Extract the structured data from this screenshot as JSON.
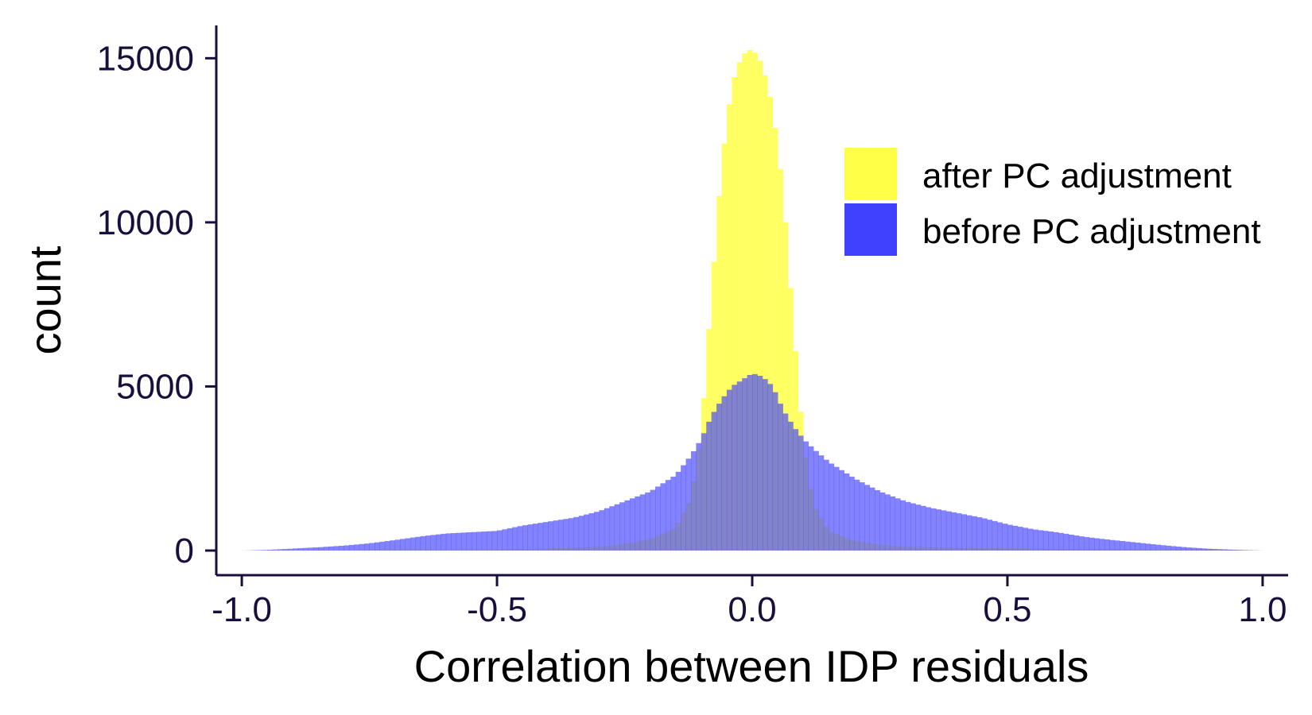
{
  "chart_data": {
    "type": "histogram",
    "xlabel": "Correlation between IDP residuals",
    "ylabel": "count",
    "xlim": [
      -1.05,
      1.05
    ],
    "ylim": [
      -750,
      16000
    ],
    "xticks": [
      -1.0,
      -0.5,
      0.0,
      0.5,
      1.0
    ],
    "xtick_labels": [
      "-1.0",
      "-0.5",
      "0.0",
      "0.5",
      "1.0"
    ],
    "yticks": [
      0,
      5000,
      10000,
      15000
    ],
    "ytick_labels": [
      "0",
      "5000",
      "10000",
      "15000"
    ],
    "grid": false,
    "legend_position": "top-right",
    "series": [
      {
        "name": "after PC adjustment",
        "color": "#ffff33",
        "opacity": 0.75,
        "x": [
          -1.0,
          -0.9,
          -0.8,
          -0.7,
          -0.6,
          -0.5,
          -0.4,
          -0.3,
          -0.25,
          -0.2,
          -0.15,
          -0.12,
          -0.1,
          -0.08,
          -0.06,
          -0.04,
          -0.02,
          0.0,
          0.02,
          0.04,
          0.06,
          0.08,
          0.1,
          0.12,
          0.15,
          0.2,
          0.25,
          0.3,
          0.4,
          0.5,
          0.6,
          0.7,
          0.8,
          0.9,
          0.95,
          1.0
        ],
        "y": [
          0,
          5,
          10,
          15,
          20,
          30,
          60,
          120,
          200,
          350,
          700,
          1600,
          3600,
          7800,
          11800,
          14200,
          15100,
          15300,
          14800,
          13500,
          11000,
          7000,
          3300,
          1400,
          600,
          300,
          180,
          120,
          90,
          70,
          50,
          40,
          30,
          60,
          30,
          0
        ]
      },
      {
        "name": "before PC adjustment",
        "color": "#4040ff",
        "opacity": 0.65,
        "x": [
          -1.0,
          -0.95,
          -0.9,
          -0.85,
          -0.8,
          -0.75,
          -0.7,
          -0.65,
          -0.6,
          -0.55,
          -0.5,
          -0.45,
          -0.4,
          -0.35,
          -0.3,
          -0.25,
          -0.2,
          -0.15,
          -0.12,
          -0.1,
          -0.08,
          -0.06,
          -0.04,
          -0.02,
          0.0,
          0.02,
          0.04,
          0.06,
          0.08,
          0.1,
          0.12,
          0.15,
          0.2,
          0.25,
          0.3,
          0.35,
          0.4,
          0.45,
          0.5,
          0.55,
          0.6,
          0.65,
          0.7,
          0.75,
          0.8,
          0.85,
          0.9,
          0.95,
          1.0
        ],
        "y": [
          0,
          20,
          60,
          100,
          150,
          220,
          320,
          430,
          520,
          560,
          600,
          760,
          880,
          1000,
          1200,
          1500,
          1800,
          2300,
          2900,
          3400,
          4100,
          4600,
          5000,
          5200,
          5400,
          5300,
          5000,
          4300,
          3800,
          3400,
          3100,
          2700,
          2200,
          1800,
          1500,
          1300,
          1150,
          1000,
          800,
          650,
          550,
          420,
          330,
          250,
          170,
          100,
          50,
          20,
          0
        ]
      }
    ]
  }
}
